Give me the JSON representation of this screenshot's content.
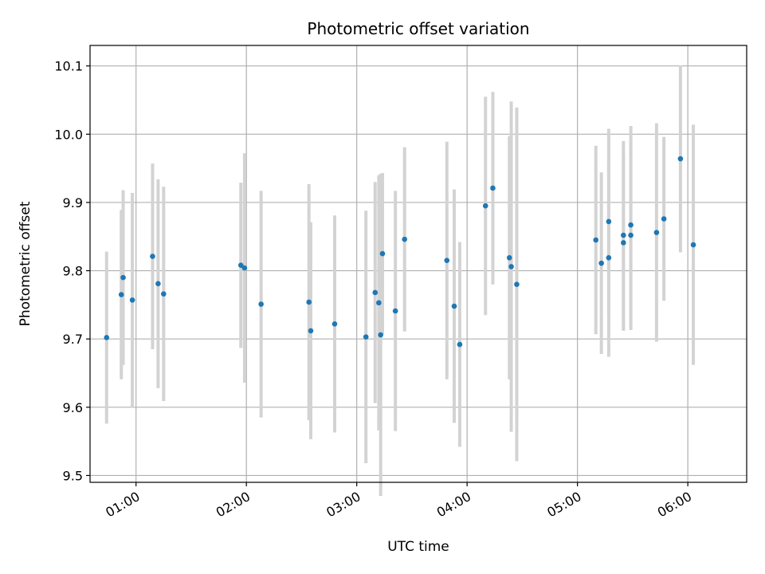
{
  "chart_data": {
    "type": "scatter",
    "title": "Photometric offset variation",
    "xlabel": "UTC time",
    "ylabel": "Photometric offset",
    "x_axis": "time",
    "xlim": [
      "00:35",
      "06:32"
    ],
    "ylim": [
      9.49,
      10.13
    ],
    "x_ticks": [
      "01:00",
      "02:00",
      "03:00",
      "04:00",
      "05:00",
      "06:00"
    ],
    "y_ticks": [
      9.5,
      9.6,
      9.7,
      9.8,
      9.9,
      10.0,
      10.1
    ],
    "y_tick_labels": [
      "9.5",
      "9.6",
      "9.7",
      "9.8",
      "9.9",
      "10.0",
      "10.1"
    ],
    "grid": true,
    "legend": "none",
    "point_color": "#1f77b4",
    "errorbar_color": "#d3d3d3",
    "series": [
      {
        "points": [
          {
            "x": "00:44",
            "y": 9.702,
            "err": 0.126
          },
          {
            "x": "00:52",
            "y": 9.765,
            "err": 0.124
          },
          {
            "x": "00:53",
            "y": 9.79,
            "err": 0.128
          },
          {
            "x": "00:58",
            "y": 9.757,
            "err": 0.157
          },
          {
            "x": "01:09",
            "y": 9.821,
            "err": 0.136
          },
          {
            "x": "01:12",
            "y": 9.781,
            "err": 0.153
          },
          {
            "x": "01:15",
            "y": 9.766,
            "err": 0.157
          },
          {
            "x": "01:57",
            "y": 9.808,
            "err": 0.121
          },
          {
            "x": "01:59",
            "y": 9.804,
            "err": 0.168
          },
          {
            "x": "02:08",
            "y": 9.751,
            "err": 0.166
          },
          {
            "x": "02:34",
            "y": 9.754,
            "err": 0.173
          },
          {
            "x": "02:35",
            "y": 9.712,
            "err": 0.159
          },
          {
            "x": "02:48",
            "y": 9.722,
            "err": 0.159
          },
          {
            "x": "03:05",
            "y": 9.703,
            "err": 0.185
          },
          {
            "x": "03:10",
            "y": 9.768,
            "err": 0.162
          },
          {
            "x": "03:12",
            "y": 9.753,
            "err": 0.187
          },
          {
            "x": "03:13",
            "y": 9.706,
            "err": 0.236
          },
          {
            "x": "03:14",
            "y": 9.825,
            "err": 0.118
          },
          {
            "x": "03:21",
            "y": 9.741,
            "err": 0.176
          },
          {
            "x": "03:26",
            "y": 9.846,
            "err": 0.135
          },
          {
            "x": "03:49",
            "y": 9.815,
            "err": 0.174
          },
          {
            "x": "03:53",
            "y": 9.748,
            "err": 0.171
          },
          {
            "x": "03:56",
            "y": 9.692,
            "err": 0.15
          },
          {
            "x": "04:10",
            "y": 9.895,
            "err": 0.16
          },
          {
            "x": "04:14",
            "y": 9.921,
            "err": 0.141
          },
          {
            "x": "04:23",
            "y": 9.819,
            "err": 0.178
          },
          {
            "x": "04:24",
            "y": 9.806,
            "err": 0.242
          },
          {
            "x": "04:27",
            "y": 9.78,
            "err": 0.259
          },
          {
            "x": "05:10",
            "y": 9.845,
            "err": 0.138
          },
          {
            "x": "05:13",
            "y": 9.811,
            "err": 0.133
          },
          {
            "x": "05:17",
            "y": 9.872,
            "err": 0.136
          },
          {
            "x": "05:17",
            "y": 9.819,
            "err": 0.145
          },
          {
            "x": "05:25",
            "y": 9.852,
            "err": 0.138
          },
          {
            "x": "05:25",
            "y": 9.841,
            "err": 0.129
          },
          {
            "x": "05:29",
            "y": 9.867,
            "err": 0.145
          },
          {
            "x": "05:29",
            "y": 9.852,
            "err": 0.139
          },
          {
            "x": "05:43",
            "y": 9.856,
            "err": 0.16
          },
          {
            "x": "05:47",
            "y": 9.876,
            "err": 0.12
          },
          {
            "x": "05:56",
            "y": 9.964,
            "err": 0.137
          },
          {
            "x": "06:03",
            "y": 9.838,
            "err": 0.176
          }
        ]
      }
    ]
  }
}
